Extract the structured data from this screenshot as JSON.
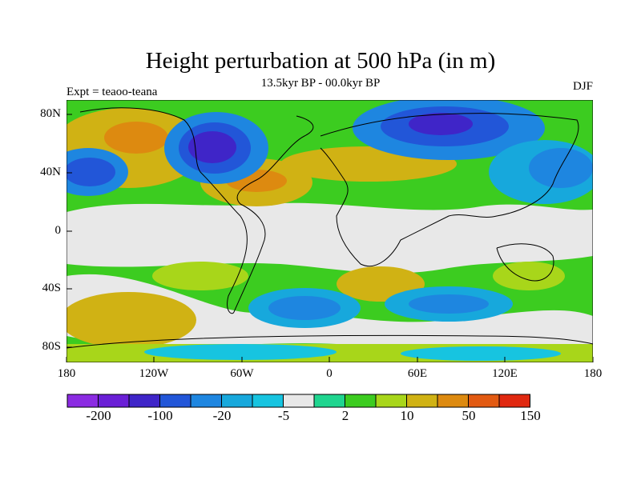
{
  "title": "Height perturbation at 500 hPa (in m)",
  "left_label": "Expt = teaoo-teana",
  "center_label": "13.5kyr BP - 00.0kyr BP",
  "right_label": "DJF",
  "map": {
    "type": "contour-map",
    "projection": "cylindrical-equidistant",
    "lon_range": [
      -180,
      180
    ],
    "lat_range": [
      -90,
      90
    ],
    "lat_ticks": [
      "80N",
      "40N",
      "0",
      "40S",
      "80S"
    ],
    "lon_ticks": [
      "180",
      "120W",
      "60W",
      "0",
      "60E",
      "120E",
      "180"
    ]
  },
  "colorbar": {
    "colors": [
      "#8b2be2",
      "#6a1fd6",
      "#3f25c8",
      "#2256d8",
      "#1e86e0",
      "#17a8dc",
      "#17c4e0",
      "#e8e8e8",
      "#1fd58f",
      "#3ccc20",
      "#a8d61a",
      "#d0b214",
      "#dd8a10",
      "#e25a12",
      "#e02810"
    ],
    "labels": [
      "-200",
      "-100",
      "-20",
      "-5",
      "2",
      "10",
      "50",
      "150"
    ]
  }
}
